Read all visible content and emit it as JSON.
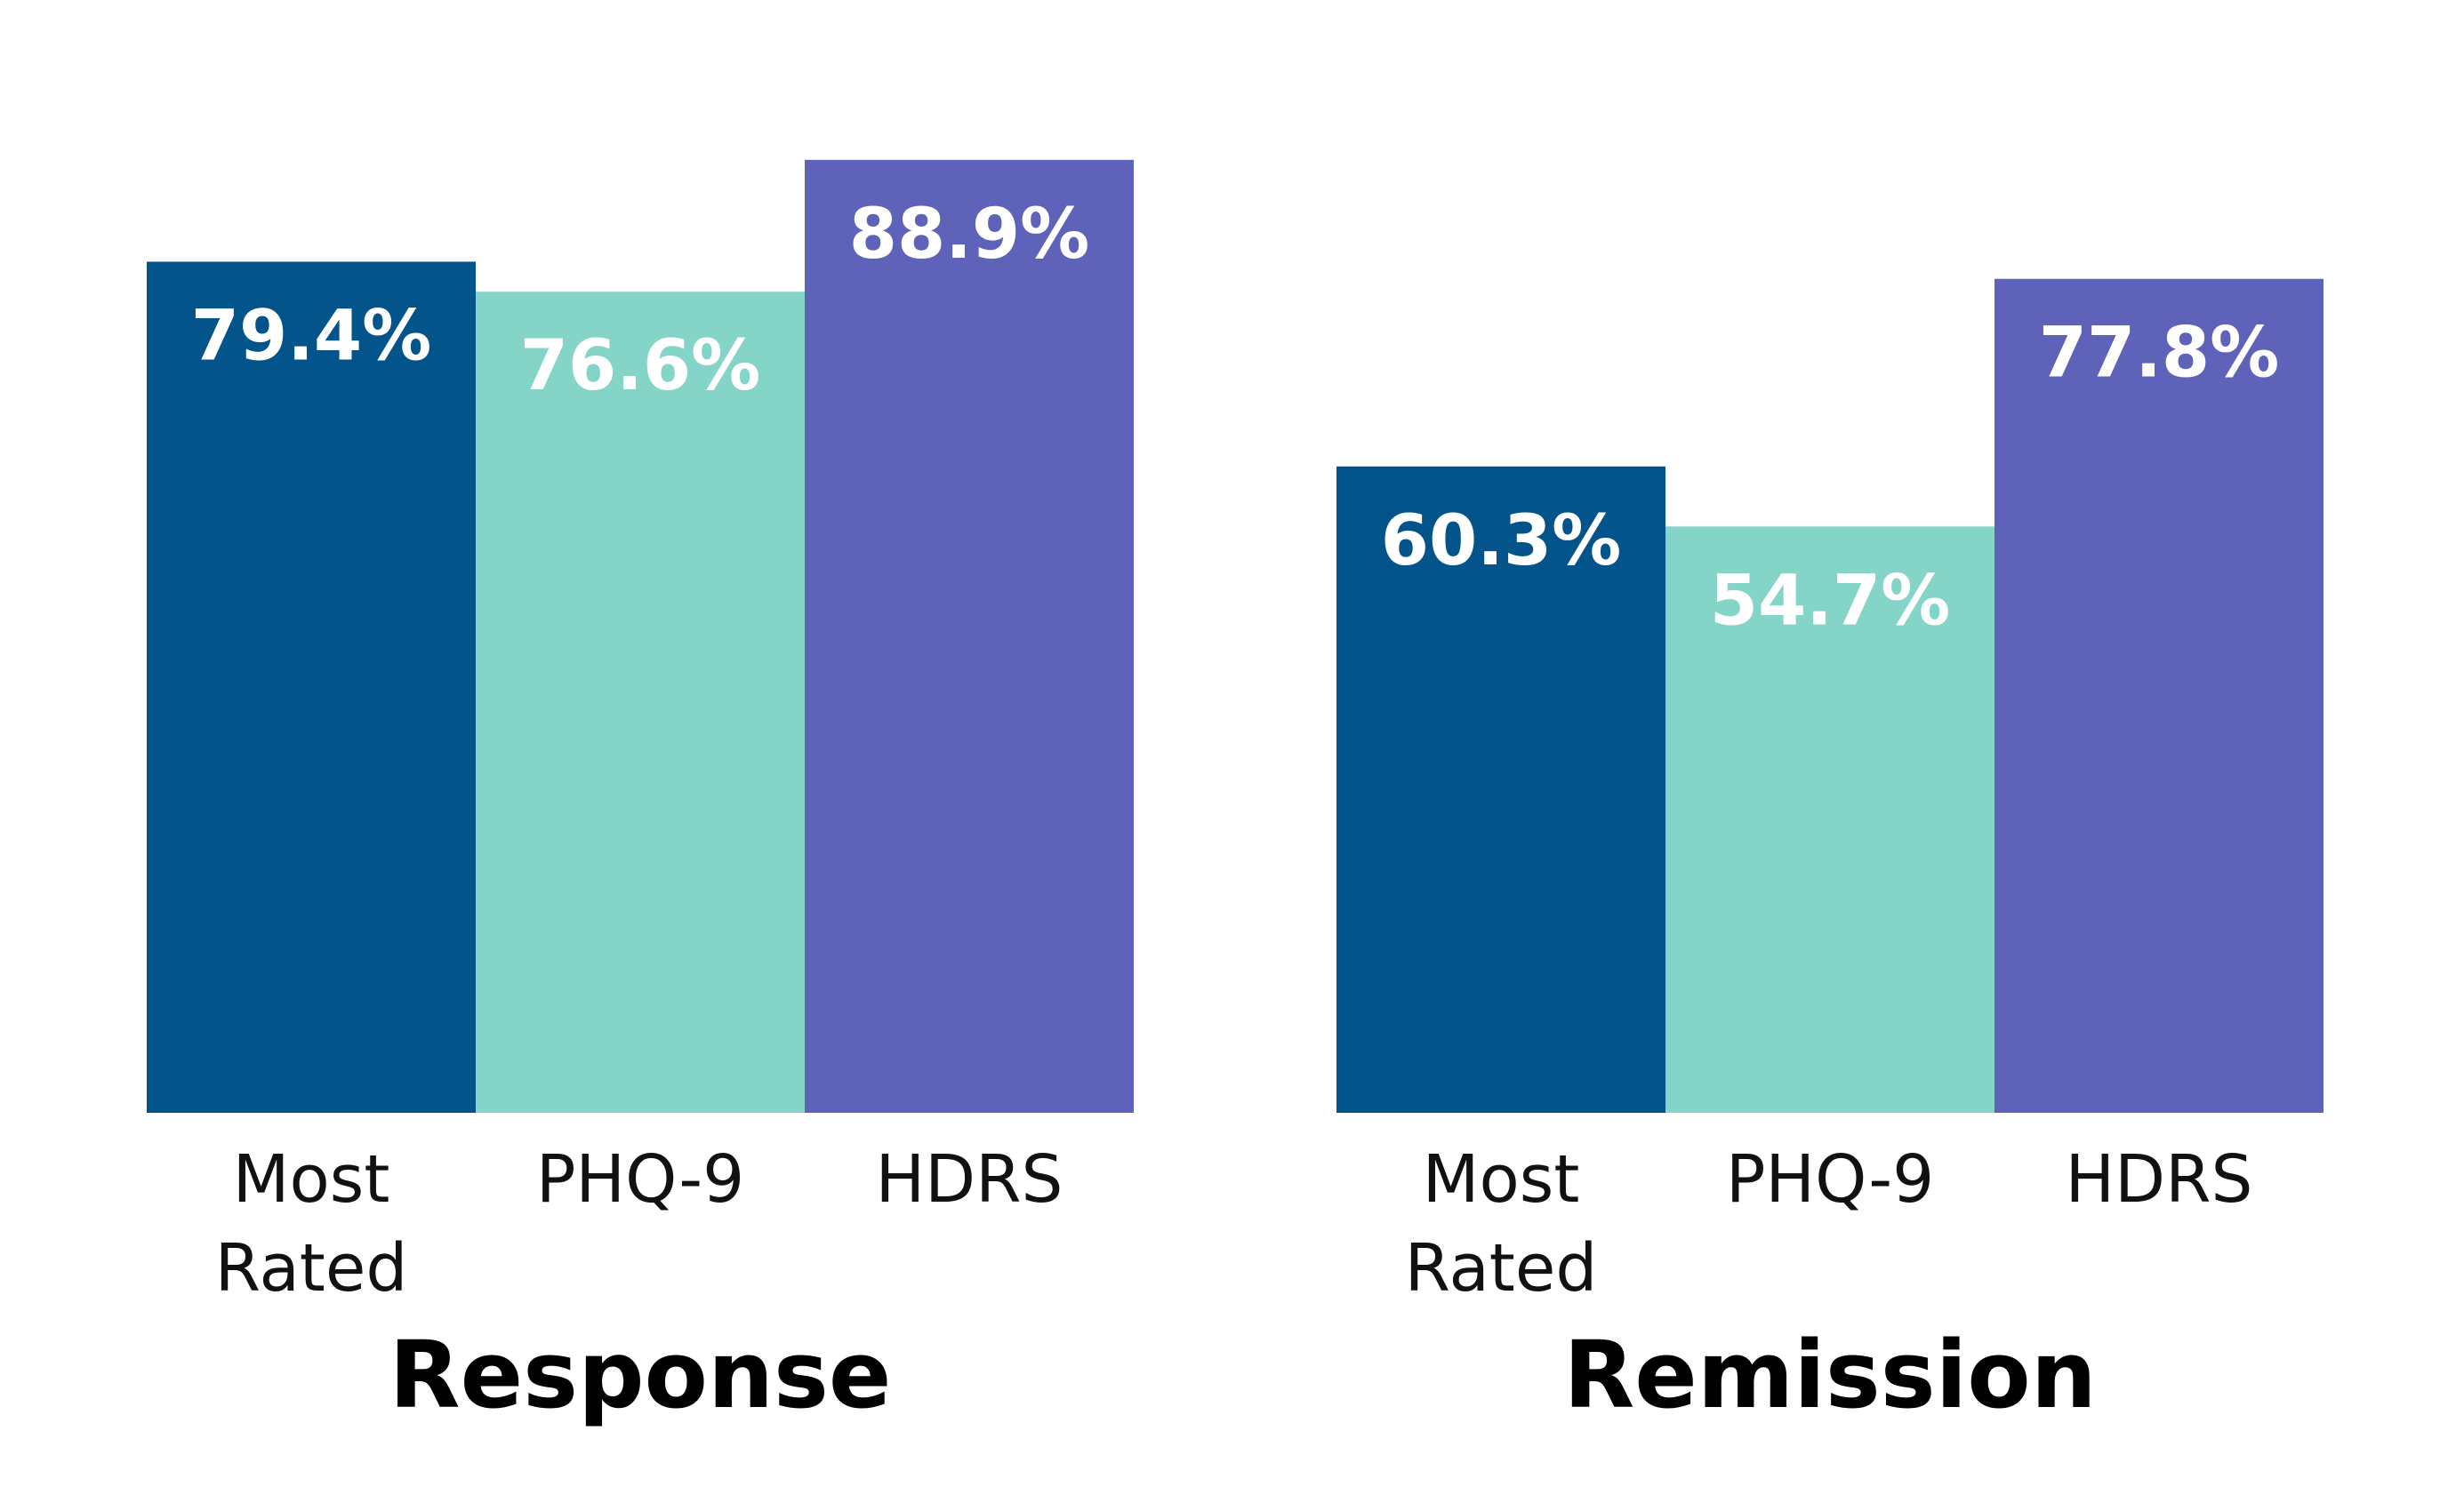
{
  "chart_data": [
    {
      "type": "bar",
      "title": "Response",
      "categories": [
        "Most Rated",
        "PHQ-9",
        "HDRS"
      ],
      "category_lines": [
        [
          "Most",
          "Rated"
        ],
        [
          "PHQ-9"
        ],
        [
          "HDRS"
        ]
      ],
      "values": [
        79.4,
        76.6,
        88.9
      ],
      "value_labels": [
        "79.4%",
        "76.6%",
        "88.9%"
      ],
      "colors": [
        "#03548A",
        "#84D5C7",
        "#5E63B9"
      ],
      "ylim": [
        0,
        100
      ],
      "unit": "%",
      "grid": false,
      "legend": "none"
    },
    {
      "type": "bar",
      "title": "Remission",
      "categories": [
        "Most Rated",
        "PHQ-9",
        "HDRS"
      ],
      "category_lines": [
        [
          "Most",
          "Rated"
        ],
        [
          "PHQ-9"
        ],
        [
          "HDRS"
        ]
      ],
      "values": [
        60.3,
        54.7,
        77.8
      ],
      "value_labels": [
        "60.3%",
        "54.7%",
        "77.8%"
      ],
      "colors": [
        "#03548A",
        "#84D5C7",
        "#5E63B9"
      ],
      "ylim": [
        0,
        100
      ],
      "unit": "%",
      "grid": false,
      "legend": "none"
    }
  ]
}
